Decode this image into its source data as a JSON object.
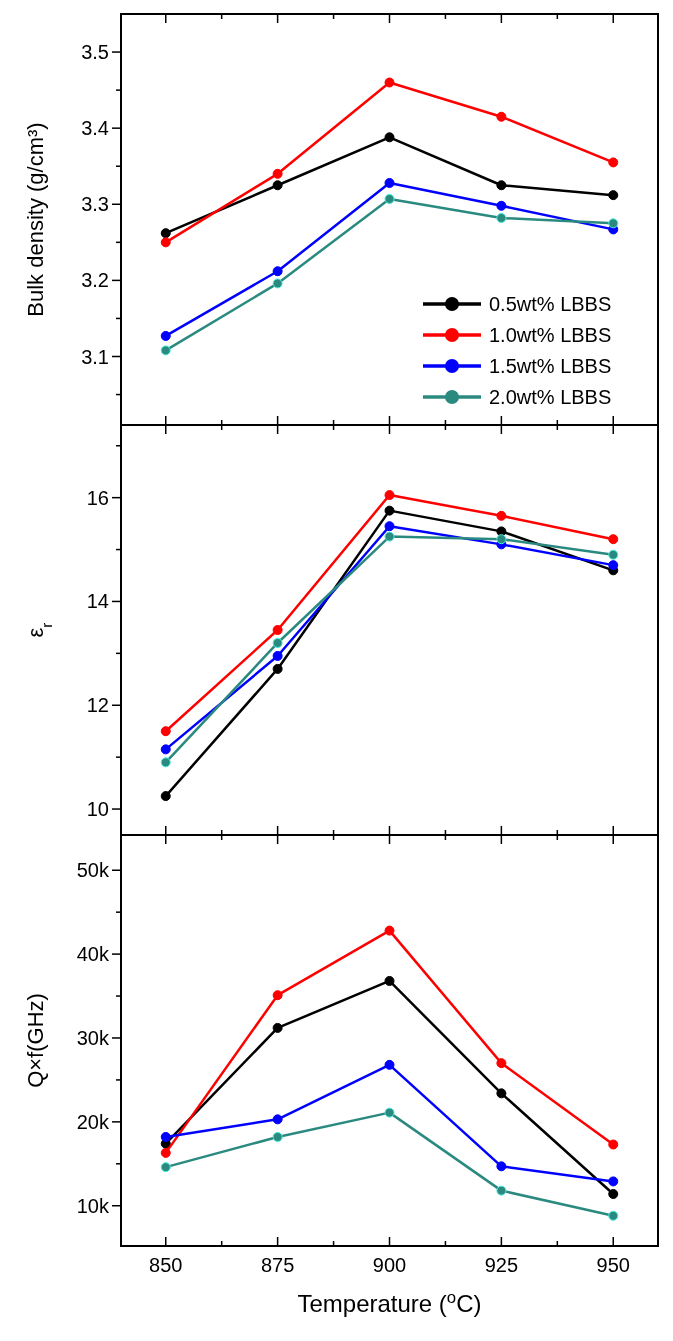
{
  "chart_data": [
    {
      "type": "line",
      "ylabel": "Bulk density (g/cm³)",
      "x": [
        850,
        875,
        900,
        925,
        950
      ],
      "xlim": [
        840,
        960
      ],
      "xticks": [
        850,
        {
          "value": 862.5,
          "label": null
        },
        875,
        {
          "value": 887.5,
          "label": null
        },
        900,
        {
          "value": 912.5,
          "label": null
        },
        925,
        {
          "value": 937.5,
          "label": null
        },
        950
      ],
      "ylim": [
        3.01,
        3.55
      ],
      "yticks": [
        {
          "value": 3.05,
          "label": null
        },
        3.1,
        {
          "value": 3.15,
          "label": null
        },
        3.2,
        {
          "value": 3.25,
          "label": null
        },
        3.3,
        {
          "value": 3.35,
          "label": null
        },
        3.4,
        {
          "value": 3.45,
          "label": null
        },
        3.5
      ],
      "tick_labels": "y",
      "marker": "circle",
      "line_style": "solid",
      "grid": false,
      "legend": "bottom right",
      "series": [
        {
          "name": "0.5wt% LBBS",
          "color": "#000000",
          "values": [
            3.262,
            3.325,
            3.388,
            3.325,
            3.312
          ]
        },
        {
          "name": "1.0wt% LBBS",
          "color": "#ff0000",
          "values": [
            3.25,
            3.34,
            3.46,
            3.415,
            3.355
          ]
        },
        {
          "name": "1.5wt% LBBS",
          "color": "#0000ff",
          "values": [
            3.127,
            3.212,
            3.328,
            3.298,
            3.267
          ]
        },
        {
          "name": "2.0wt% LBBS",
          "color": "#2a8a80",
          "values": [
            3.108,
            3.196,
            3.307,
            3.282,
            3.275
          ]
        }
      ]
    },
    {
      "type": "line",
      "ylabel": "ε$_{r}$",
      "x": [
        850,
        875,
        900,
        925,
        950
      ],
      "xlim": [
        840,
        960
      ],
      "xticks": [
        850,
        {
          "value": 862.5,
          "label": null
        },
        875,
        {
          "value": 887.5,
          "label": null
        },
        900,
        {
          "value": 912.5,
          "label": null
        },
        925,
        {
          "value": 937.5,
          "label": null
        },
        950
      ],
      "ylim": [
        9.5,
        17.4
      ],
      "yticks": [
        10,
        {
          "value": 11,
          "label": null
        },
        12,
        {
          "value": 13,
          "label": null
        },
        14,
        {
          "value": 15,
          "label": null
        },
        16,
        {
          "value": 17,
          "label": null
        }
      ],
      "tick_labels": "y",
      "marker": "circle",
      "line_style": "solid",
      "grid": false,
      "series": [
        {
          "color": "#000000",
          "values": [
            10.25,
            12.7,
            15.75,
            15.35,
            14.6
          ]
        },
        {
          "color": "#ff0000",
          "values": [
            11.5,
            13.45,
            16.05,
            15.65,
            15.2
          ]
        },
        {
          "color": "#0000ff",
          "values": [
            11.15,
            12.95,
            15.45,
            15.1,
            14.7
          ]
        },
        {
          "color": "#2a8a80",
          "values": [
            10.9,
            13.2,
            15.25,
            15.2,
            14.9
          ]
        }
      ]
    },
    {
      "type": "line",
      "ylabel": "Q×f(GHz)",
      "xlabel": "Temperature ($^{o}$C)",
      "x": [
        850,
        875,
        900,
        925,
        950
      ],
      "xlim": [
        840,
        960
      ],
      "xticks": [
        850,
        {
          "value": 862.5,
          "label": null
        },
        875,
        {
          "value": 887.5,
          "label": null
        },
        900,
        {
          "value": 912.5,
          "label": null
        },
        925,
        {
          "value": 937.5,
          "label": null
        },
        950
      ],
      "ylim": [
        5200,
        54200
      ],
      "yticks": [
        {
          "value": 10000,
          "label": "10k"
        },
        {
          "value": 15000,
          "label": null
        },
        {
          "value": 20000,
          "label": "20k"
        },
        {
          "value": 25000,
          "label": null
        },
        {
          "value": 30000,
          "label": "30k"
        },
        {
          "value": 35000,
          "label": null
        },
        {
          "value": 40000,
          "label": "40k"
        },
        {
          "value": 45000,
          "label": null
        },
        {
          "value": 50000,
          "label": "50k"
        }
      ],
      "marker": "circle",
      "line_style": "solid",
      "grid": false,
      "series": [
        {
          "color": "#000000",
          "values": [
            17400,
            31200,
            36800,
            23400,
            11400
          ]
        },
        {
          "color": "#ff0000",
          "values": [
            16300,
            35100,
            42800,
            27000,
            17300
          ]
        },
        {
          "color": "#0000ff",
          "values": [
            18200,
            20300,
            26800,
            14700,
            12900
          ]
        },
        {
          "color": "#2a8a80",
          "values": [
            14600,
            18200,
            21100,
            11800,
            8800
          ]
        }
      ]
    }
  ]
}
